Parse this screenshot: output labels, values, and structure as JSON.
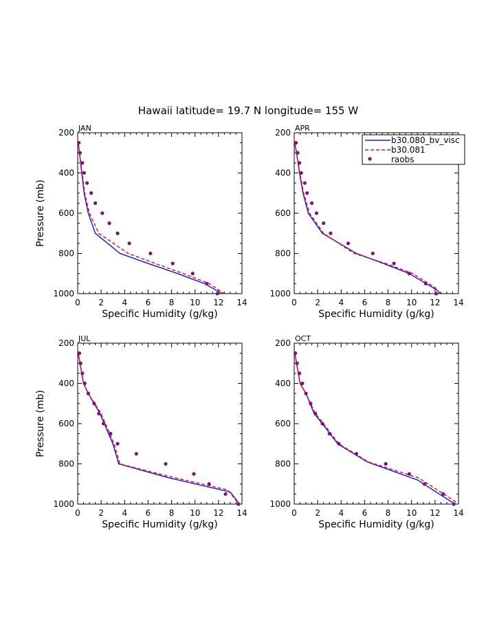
{
  "figure": {
    "title": "Hawaii  latitude= 19.7 N longitude= 155 W"
  },
  "legend": {
    "entries": [
      {
        "label": "b30.080_bv_visc",
        "color": "#1f1fd6",
        "style": "solid"
      },
      {
        "label": "b30.081",
        "color": "#e3141b",
        "style": "dashed"
      },
      {
        "label": "raobs",
        "color": "#7d127f",
        "style": "dots"
      }
    ]
  },
  "chart_data": [
    {
      "type": "line",
      "panel": "JAN",
      "xlabel": "Specific Humidity (g/kg)",
      "ylabel": "Pressure (mb)",
      "xlim": [
        0,
        14
      ],
      "ylim": [
        1000,
        200
      ],
      "xticks": [
        0,
        2,
        4,
        6,
        8,
        10,
        12,
        14
      ],
      "yticks": [
        200,
        400,
        600,
        800,
        1000
      ],
      "series": [
        {
          "name": "b30.080_bv_visc",
          "x": [
            0.05,
            0.15,
            0.35,
            0.55,
            0.9,
            1.5,
            3.6,
            6.0,
            8.5,
            10.8,
            12.3
          ],
          "y": [
            250,
            300,
            400,
            500,
            600,
            700,
            800,
            850,
            900,
            950,
            1000
          ]
        },
        {
          "name": "b30.081",
          "x": [
            0.05,
            0.15,
            0.38,
            0.6,
            1.0,
            1.8,
            4.3,
            6.6,
            9.0,
            11.2,
            12.5
          ],
          "y": [
            250,
            300,
            400,
            500,
            600,
            700,
            800,
            850,
            900,
            950,
            1000
          ]
        },
        {
          "name": "raobs",
          "x": [
            0.1,
            0.2,
            0.4,
            0.55,
            0.8,
            1.15,
            1.5,
            2.1,
            2.7,
            3.4,
            4.4,
            6.2,
            8.1,
            9.8,
            11.0,
            11.9
          ],
          "y": [
            250,
            300,
            350,
            400,
            450,
            500,
            550,
            600,
            650,
            700,
            750,
            800,
            850,
            900,
            950,
            1000
          ]
        }
      ]
    },
    {
      "type": "line",
      "panel": "APR",
      "xlabel": "Specific Humidity (g/kg)",
      "ylabel": "",
      "xlim": [
        0,
        14
      ],
      "ylim": [
        1000,
        200
      ],
      "xticks": [
        0,
        2,
        4,
        6,
        8,
        10,
        12,
        14
      ],
      "yticks": [
        200,
        400,
        600,
        800,
        1000
      ],
      "series": [
        {
          "name": "b30.080_bv_visc",
          "x": [
            0.05,
            0.2,
            0.45,
            0.75,
            1.2,
            2.4,
            5.3,
            7.6,
            9.8,
            12.1,
            12.5
          ],
          "y": [
            250,
            300,
            400,
            500,
            600,
            700,
            800,
            850,
            900,
            980,
            1000
          ]
        },
        {
          "name": "b30.081",
          "x": [
            0.05,
            0.2,
            0.48,
            0.8,
            1.3,
            2.5,
            5.1,
            7.8,
            10.1,
            12.0,
            12.3
          ],
          "y": [
            250,
            300,
            400,
            500,
            600,
            700,
            800,
            850,
            900,
            970,
            990
          ]
        },
        {
          "name": "raobs",
          "x": [
            0.15,
            0.3,
            0.45,
            0.6,
            0.9,
            1.1,
            1.5,
            1.9,
            2.5,
            3.1,
            4.6,
            6.7,
            8.5,
            9.8,
            11.2,
            12.1
          ],
          "y": [
            250,
            300,
            350,
            400,
            450,
            500,
            550,
            600,
            650,
            700,
            750,
            800,
            850,
            900,
            950,
            1000
          ]
        }
      ]
    },
    {
      "type": "line",
      "panel": "JUL",
      "xlabel": "Specific Humidity (g/kg)",
      "ylabel": "Pressure (mb)",
      "xlim": [
        0,
        14
      ],
      "ylim": [
        1000,
        200
      ],
      "xticks": [
        0,
        2,
        4,
        6,
        8,
        10,
        12,
        14
      ],
      "yticks": [
        200,
        400,
        600,
        800,
        1000
      ],
      "series": [
        {
          "name": "b30.080_bv_visc",
          "x": [
            0.05,
            0.2,
            0.5,
            0.9,
            1.9,
            3.0,
            3.5,
            7.8,
            13.0,
            13.8
          ],
          "y": [
            250,
            300,
            400,
            450,
            550,
            700,
            800,
            870,
            940,
            1000
          ]
        },
        {
          "name": "b30.081",
          "x": [
            0.05,
            0.2,
            0.5,
            0.9,
            2.0,
            3.1,
            3.6,
            7.6,
            12.8,
            13.6
          ],
          "y": [
            250,
            300,
            400,
            450,
            550,
            700,
            800,
            860,
            930,
            990
          ]
        },
        {
          "name": "raobs",
          "x": [
            0.15,
            0.25,
            0.4,
            0.6,
            0.9,
            1.4,
            1.8,
            2.2,
            2.8,
            3.4,
            5.0,
            7.5,
            9.9,
            11.2,
            12.6,
            13.7
          ],
          "y": [
            250,
            300,
            350,
            400,
            450,
            500,
            550,
            600,
            650,
            700,
            750,
            800,
            850,
            900,
            950,
            1000
          ]
        }
      ]
    },
    {
      "type": "line",
      "panel": "OCT",
      "xlabel": "Specific Humidity (g/kg)",
      "ylabel": "",
      "xlim": [
        0,
        14
      ],
      "ylim": [
        1000,
        200
      ],
      "xticks": [
        0,
        2,
        4,
        6,
        8,
        10,
        12,
        14
      ],
      "yticks": [
        200,
        400,
        600,
        800,
        1000
      ],
      "series": [
        {
          "name": "b30.080_bv_visc",
          "x": [
            0.05,
            0.2,
            0.5,
            1.0,
            1.7,
            2.4,
            3.7,
            6.2,
            10.5,
            12.1,
            13.7
          ],
          "y": [
            250,
            300,
            400,
            450,
            550,
            600,
            700,
            790,
            880,
            940,
            1000
          ]
        },
        {
          "name": "b30.081",
          "x": [
            0.05,
            0.2,
            0.5,
            1.0,
            1.8,
            2.5,
            3.8,
            6.3,
            10.6,
            12.2,
            13.8
          ],
          "y": [
            250,
            300,
            400,
            450,
            550,
            600,
            700,
            790,
            870,
            930,
            990
          ]
        },
        {
          "name": "raobs",
          "x": [
            0.1,
            0.25,
            0.45,
            0.7,
            1.0,
            1.4,
            1.8,
            2.4,
            3.0,
            3.8,
            5.3,
            7.8,
            9.8,
            11.1,
            12.7,
            13.6
          ],
          "y": [
            250,
            300,
            350,
            400,
            450,
            500,
            550,
            600,
            650,
            700,
            750,
            800,
            850,
            900,
            950,
            1000
          ]
        }
      ]
    }
  ]
}
